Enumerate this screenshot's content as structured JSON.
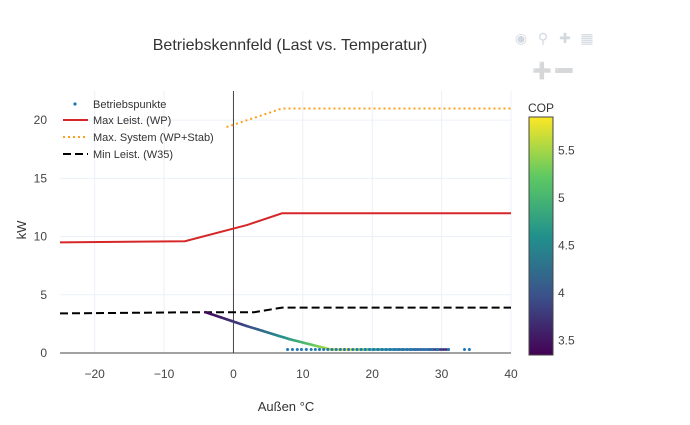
{
  "chart_data": {
    "type": "line",
    "title": "Betriebskennfeld (Last vs. Temperatur)",
    "xlabel": "Außen °C",
    "ylabel": "kW",
    "xlim": [
      -25,
      40
    ],
    "ylim": [
      0,
      22.5
    ],
    "x_ticks": [
      -20,
      -10,
      0,
      10,
      20,
      30,
      40
    ],
    "x_tick_labels": [
      "−20",
      "−10",
      "0",
      "10",
      "20",
      "30",
      "40"
    ],
    "y_ticks": [
      0,
      5,
      10,
      15,
      20
    ],
    "y_tick_labels": [
      "0",
      "5",
      "10",
      "15",
      "20"
    ],
    "legend_position": "top-left",
    "series": [
      {
        "name": "Betriebspunkte",
        "kind": "scatter-markers",
        "color": "#1f77b4",
        "x": [
          7.8,
          8.5,
          9.2,
          9.8,
          10.5,
          11.2,
          11.8,
          12.4,
          13.0,
          13.6,
          14.2,
          14.8,
          15.4,
          16.0,
          16.6,
          17.2,
          17.8,
          18.4,
          19.0,
          19.6,
          20.2,
          20.8,
          21.4,
          22.0,
          22.6,
          23.2,
          23.8,
          24.4,
          25.0,
          25.6,
          26.2,
          26.8,
          27.4,
          28.0,
          28.6,
          29.4,
          31.0,
          33.3,
          34.0
        ],
        "y": [
          0.3,
          0.3,
          0.3,
          0.3,
          0.3,
          0.3,
          0.3,
          0.3,
          0.3,
          0.3,
          0.3,
          0.3,
          0.3,
          0.3,
          0.3,
          0.3,
          0.3,
          0.3,
          0.3,
          0.3,
          0.3,
          0.3,
          0.3,
          0.3,
          0.3,
          0.3,
          0.3,
          0.3,
          0.3,
          0.3,
          0.3,
          0.3,
          0.3,
          0.3,
          0.3,
          0.3,
          0.3,
          0.3,
          0.3
        ]
      },
      {
        "name": "Max Leist. (WP)",
        "kind": "line",
        "color": "#d62728",
        "dash": "solid",
        "x": [
          -25,
          -7,
          2,
          7,
          40
        ],
        "y": [
          9.5,
          9.6,
          11.0,
          12.0,
          12.0
        ]
      },
      {
        "name": "Max. System (WP+Stab)",
        "kind": "line",
        "color": "#ff9f1c",
        "dash": "dot",
        "x": [
          -1,
          2,
          7,
          40
        ],
        "y": [
          19.4,
          20.0,
          21.0,
          21.0
        ]
      },
      {
        "name": "Min Leist. (W35)",
        "kind": "line",
        "color": "#000000",
        "dash": "dash",
        "x": [
          -25,
          -5,
          3,
          7,
          40
        ],
        "y": [
          3.4,
          3.5,
          3.5,
          3.9,
          3.9
        ]
      }
    ],
    "cop_line": {
      "x": [
        -4,
        2,
        8,
        14,
        17,
        20,
        24,
        28,
        31
      ],
      "y": [
        3.5,
        2.3,
        1.2,
        0.3,
        0.3,
        0.3,
        0.3,
        0.3,
        0.3
      ],
      "cop": [
        3.4,
        3.9,
        4.7,
        5.6,
        5.75,
        5.0,
        4.3,
        3.9,
        3.7
      ]
    },
    "colorbar": {
      "title": "COP",
      "range": [
        3.35,
        5.85
      ],
      "ticks": [
        3.5,
        4,
        4.5,
        5,
        5.5
      ],
      "tick_labels": [
        "3.5",
        "4",
        "4.5",
        "5",
        "5.5"
      ],
      "colorscale": [
        "#440154",
        "#3b528b",
        "#21918c",
        "#5ec962",
        "#fde725"
      ]
    }
  }
}
